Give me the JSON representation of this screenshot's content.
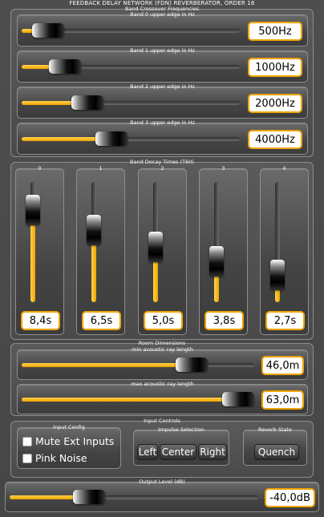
{
  "title": "FEEDBACK DELAY NETWORK (FDN) REVERBERATOR, ORDER 16",
  "crossover": {
    "caption": "Band Crossover Frequencies",
    "bands": [
      {
        "label": "Band 0 upper edge in Hz",
        "value": "500Hz",
        "level": 0.12
      },
      {
        "label": "Band 1 upper edge in Hz",
        "value": "1000Hz",
        "level": 0.2
      },
      {
        "label": "Band 2 upper edge in Hz",
        "value": "2000Hz",
        "level": 0.3
      },
      {
        "label": "Band 3 upper edge in Hz",
        "value": "4000Hz",
        "level": 0.41
      }
    ]
  },
  "decay": {
    "caption": "Band Decay Times (T60)",
    "bands": [
      {
        "label": "0",
        "value": "8,4s",
        "level": 0.77
      },
      {
        "label": "1",
        "value": "6,5s",
        "level": 0.6
      },
      {
        "label": "2",
        "value": "5,0s",
        "level": 0.46
      },
      {
        "label": "3",
        "value": "3,8s",
        "level": 0.34
      },
      {
        "label": "4",
        "value": "2,7s",
        "level": 0.23
      }
    ]
  },
  "room": {
    "caption": "Room Dimensions",
    "min_label": "min acoustic ray length",
    "min_value": "46,0m",
    "min_level": 0.73,
    "max_label": "max acoustic ray length",
    "max_value": "63,0m",
    "max_level": 0.97
  },
  "input": {
    "caption": "Input Controls",
    "config_caption": "Input Config",
    "mute_label": "Mute Ext Inputs",
    "mute_checked": false,
    "pink_label": "Pink Noise",
    "pink_checked": false,
    "impulse_caption": "Impulse Selection",
    "impulse_buttons": [
      "Left",
      "Center",
      "Right"
    ],
    "reverb_caption": "Reverb State",
    "quench_label": "Quench"
  },
  "output": {
    "caption": "Output Level (dB)",
    "value": "-40,0dB",
    "level": 0.32
  },
  "colors": {
    "accent": "#f0a400",
    "panel": "#4a4a4a"
  }
}
